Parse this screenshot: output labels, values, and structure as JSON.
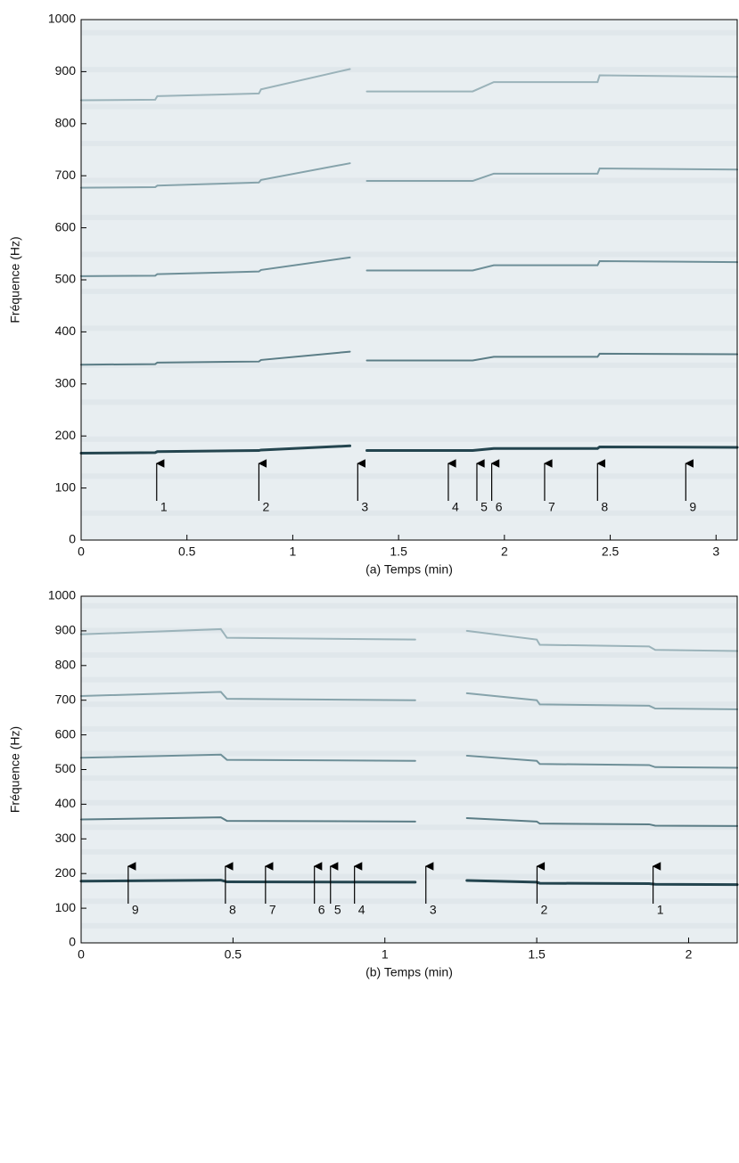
{
  "chart_data": [
    {
      "type": "line",
      "xlabel": "(a)  Temps (min)",
      "ylabel": "Fréquence (Hz)",
      "xlim": [
        0,
        3.1
      ],
      "ylim": [
        0,
        1000
      ],
      "xticks": [
        0,
        0.5,
        1,
        1.5,
        2,
        2.5,
        3
      ],
      "yticks": [
        0,
        100,
        200,
        300,
        400,
        500,
        600,
        700,
        800,
        900,
        1000
      ],
      "x": [
        0,
        0.35,
        0.36,
        0.84,
        0.85,
        1.27,
        1.33,
        1.35,
        1.85,
        1.95,
        2.44,
        2.45,
        3.1
      ],
      "series": [
        {
          "color": "#24454f",
          "values": [
            167,
            168,
            170,
            172,
            173,
            181,
            null,
            172,
            172,
            176,
            176,
            179,
            178
          ]
        },
        {
          "color": "#5b7d86",
          "values": [
            337,
            338,
            341,
            343,
            346,
            362,
            null,
            345,
            345,
            352,
            352,
            358,
            357
          ]
        },
        {
          "color": "#6e8f98",
          "values": [
            507,
            508,
            511,
            516,
            519,
            543,
            null,
            518,
            518,
            528,
            528,
            536,
            534
          ]
        },
        {
          "color": "#86a3ab",
          "values": [
            677,
            678,
            681,
            687,
            692,
            724,
            null,
            690,
            690,
            704,
            704,
            714,
            712
          ]
        },
        {
          "color": "#9bb3ba",
          "values": [
            845,
            846,
            853,
            858,
            866,
            905,
            null,
            862,
            862,
            880,
            880,
            893,
            890
          ]
        }
      ],
      "annotations": [
        {
          "text": "1",
          "x": 0.357
        },
        {
          "text": "2",
          "x": 0.84
        },
        {
          "text": "3",
          "x": 1.307
        },
        {
          "text": "4",
          "x": 1.735
        },
        {
          "text": "5",
          "x": 1.87
        },
        {
          "text": "6",
          "x": 1.94
        },
        {
          "text": "7",
          "x": 2.19
        },
        {
          "text": "8",
          "x": 2.44
        },
        {
          "text": "9",
          "x": 2.857
        }
      ]
    },
    {
      "type": "line",
      "xlabel": "(b)  Temps (min)",
      "ylabel": "Fréquence (Hz)",
      "xlim": [
        0,
        2.16
      ],
      "ylim": [
        0,
        1000
      ],
      "xticks": [
        0,
        0.5,
        1,
        1.5,
        2
      ],
      "yticks": [
        0,
        100,
        200,
        300,
        400,
        500,
        600,
        700,
        800,
        900,
        1000
      ],
      "x": [
        0,
        0.46,
        0.48,
        1.1,
        1.13,
        1.27,
        1.5,
        1.51,
        1.87,
        1.89,
        2.16
      ],
      "series": [
        {
          "color": "#24454f",
          "values": [
            178,
            181,
            176,
            175,
            null,
            180,
            175,
            172,
            171,
            169,
            168
          ]
        },
        {
          "color": "#5b7d86",
          "values": [
            356,
            362,
            352,
            350,
            null,
            360,
            350,
            344,
            342,
            338,
            337
          ]
        },
        {
          "color": "#6e8f98",
          "values": [
            534,
            543,
            528,
            525,
            null,
            540,
            525,
            516,
            513,
            507,
            505
          ]
        },
        {
          "color": "#86a3ab",
          "values": [
            712,
            724,
            704,
            700,
            null,
            720,
            700,
            688,
            684,
            676,
            674
          ]
        },
        {
          "color": "#9bb3ba",
          "values": [
            890,
            905,
            880,
            875,
            null,
            900,
            875,
            860,
            855,
            845,
            842
          ]
        }
      ],
      "annotations": [
        {
          "text": "9",
          "x": 0.155
        },
        {
          "text": "8",
          "x": 0.475
        },
        {
          "text": "7",
          "x": 0.607
        },
        {
          "text": "6",
          "x": 0.768
        },
        {
          "text": "5",
          "x": 0.821
        },
        {
          "text": "4",
          "x": 0.9
        },
        {
          "text": "3",
          "x": 1.135
        },
        {
          "text": "2",
          "x": 1.501
        },
        {
          "text": "1",
          "x": 1.883
        }
      ]
    }
  ]
}
